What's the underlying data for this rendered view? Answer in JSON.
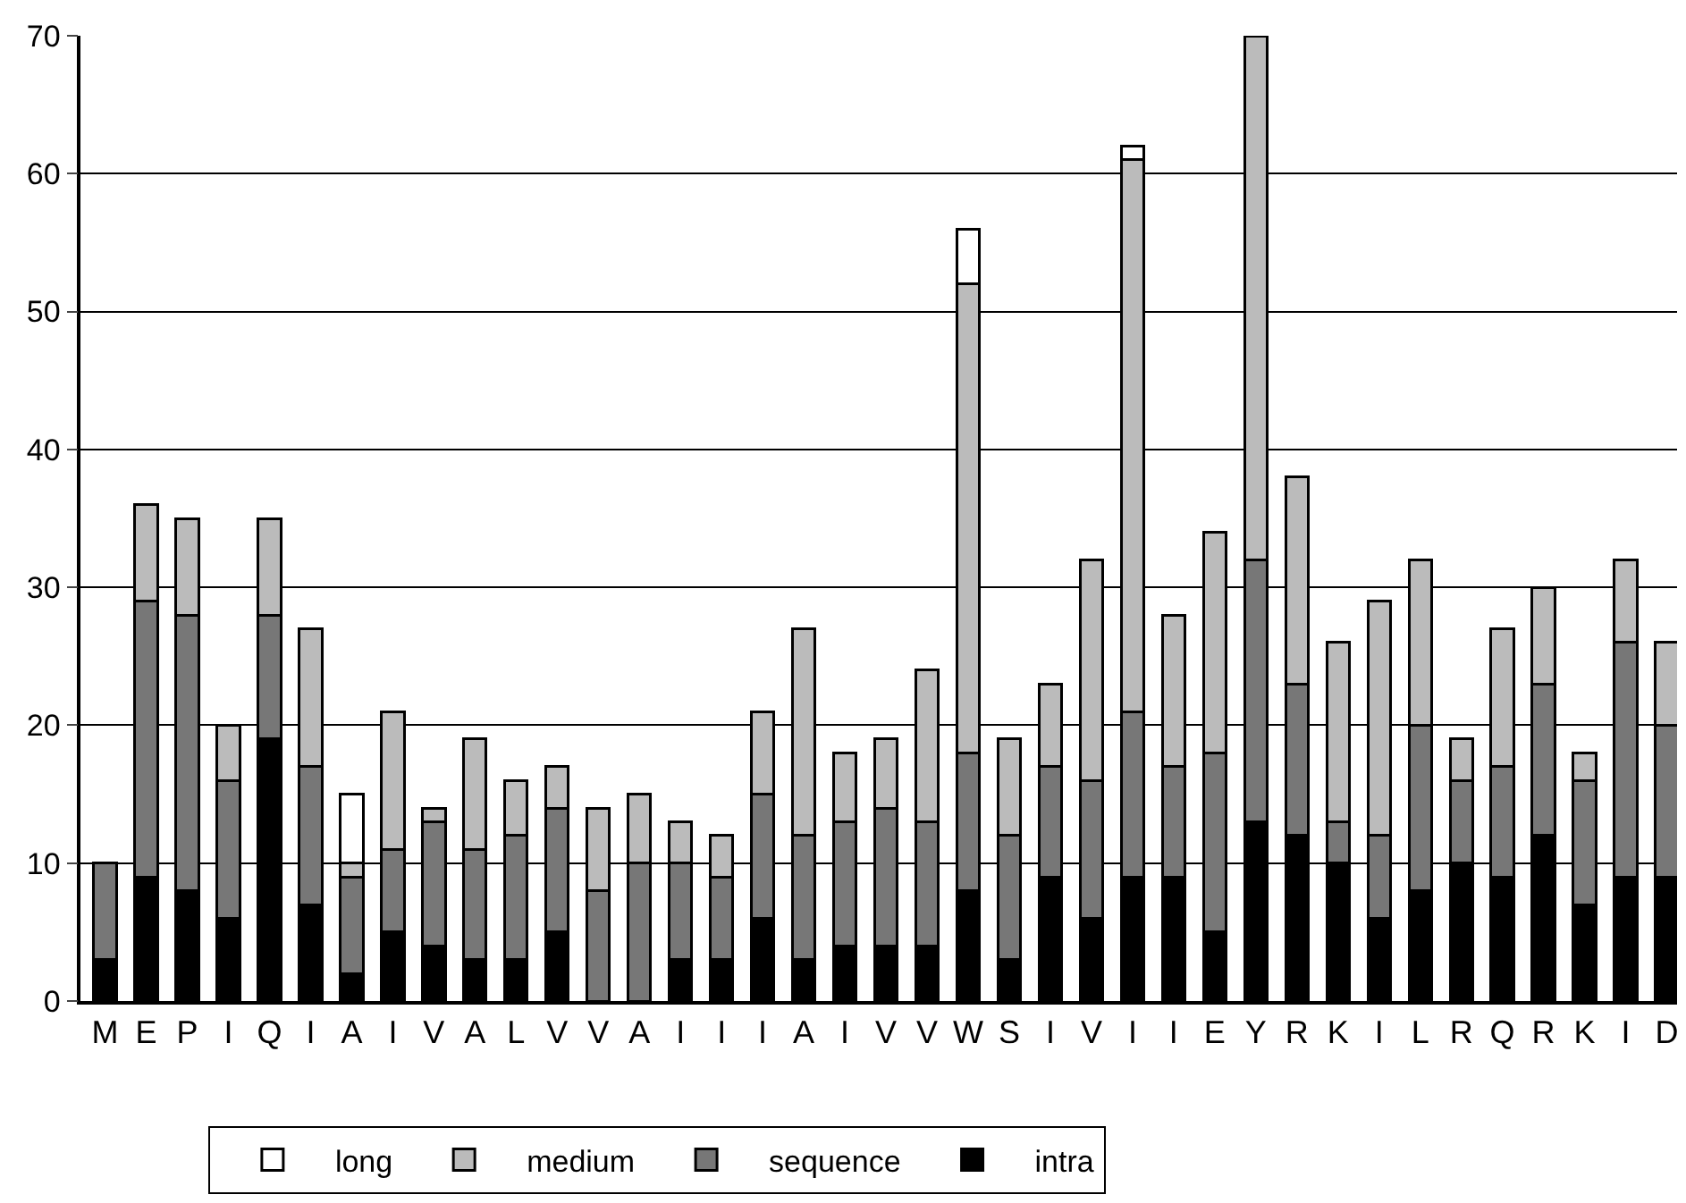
{
  "chart_data": {
    "type": "bar",
    "stacked": true,
    "categories": [
      "M",
      "E",
      "P",
      "I",
      "Q",
      "I",
      "A",
      "I",
      "V",
      "A",
      "L",
      "V",
      "V",
      "A",
      "I",
      "I",
      "I",
      "A",
      "I",
      "V",
      "V",
      "W",
      "S",
      "I",
      "V",
      "I",
      "I",
      "E",
      "Y",
      "R",
      "K",
      "I",
      "L",
      "R",
      "Q",
      "R",
      "K",
      "I",
      "D"
    ],
    "series": [
      {
        "name": "intra",
        "color": "#000000",
        "values": [
          3,
          9,
          8,
          6,
          19,
          7,
          2,
          5,
          4,
          3,
          3,
          5,
          null,
          null,
          3,
          3,
          6,
          3,
          4,
          4,
          4,
          8,
          3,
          9,
          6,
          9,
          9,
          5,
          13,
          12,
          10,
          6,
          8,
          10,
          9,
          12,
          7,
          9,
          9
        ]
      },
      {
        "name": "sequence",
        "color": "#777777",
        "values": [
          7,
          20,
          20,
          10,
          9,
          10,
          7,
          6,
          9,
          8,
          9,
          9,
          8,
          10,
          7,
          6,
          9,
          9,
          9,
          10,
          9,
          10,
          9,
          8,
          10,
          12,
          8,
          13,
          19,
          11,
          3,
          6,
          12,
          6,
          8,
          11,
          9,
          17,
          11
        ]
      },
      {
        "name": "medium",
        "color": "#bbbbbb",
        "values": [
          null,
          7,
          7,
          4,
          7,
          10,
          1,
          10,
          1,
          8,
          4,
          3,
          6,
          5,
          3,
          3,
          6,
          15,
          5,
          5,
          11,
          34,
          7,
          6,
          16,
          40,
          11,
          16,
          38,
          15,
          13,
          17,
          12,
          3,
          10,
          7,
          2,
          6,
          6
        ]
      },
      {
        "name": "long",
        "color": "#ffffff",
        "values": [
          null,
          null,
          null,
          null,
          null,
          null,
          5,
          null,
          null,
          null,
          null,
          null,
          null,
          null,
          null,
          null,
          null,
          null,
          null,
          null,
          null,
          4,
          null,
          null,
          null,
          1,
          null,
          null,
          null,
          null,
          null,
          null,
          null,
          null,
          null,
          null,
          null,
          null,
          null
        ]
      }
    ],
    "ylim": [
      0,
      70
    ],
    "yticks": [
      0,
      10,
      20,
      30,
      40,
      50,
      60,
      70
    ],
    "grid": "y",
    "legend": "bottom"
  }
}
